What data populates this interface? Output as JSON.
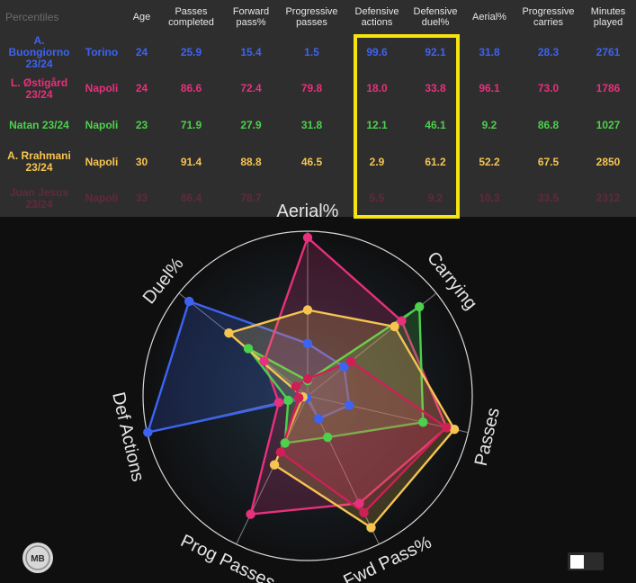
{
  "table": {
    "headers": [
      "Percentiles",
      "",
      "Age",
      "Passes completed",
      "Forward pass%",
      "Progressive passes",
      "Defensive actions",
      "Defensive duel%",
      "Aerial%",
      "Progressive carries",
      "Minutes played"
    ],
    "rows": [
      {
        "player": "A. Buongiorno 23/24",
        "team": "Torino",
        "color": "#3d63f2",
        "cells": [
          "24",
          "25.9",
          "15.4",
          "1.5",
          "99.6",
          "92.1",
          "31.8",
          "28.3",
          "2761"
        ]
      },
      {
        "player": "L. Østigård 23/24",
        "team": "Napoli",
        "color": "#e8307c",
        "cells": [
          "24",
          "86.6",
          "72.4",
          "79.8",
          "18.0",
          "33.8",
          "96.1",
          "73.0",
          "1786"
        ]
      },
      {
        "player": "Natan 23/24",
        "team": "Napoli",
        "color": "#4bd14b",
        "cells": [
          "23",
          "71.9",
          "27.9",
          "31.8",
          "12.1",
          "46.1",
          "9.2",
          "86.8",
          "1027"
        ]
      },
      {
        "player": "A. Rrahmani 23/24",
        "team": "Napoli",
        "color": "#f5c451",
        "cells": [
          "30",
          "91.4",
          "88.8",
          "46.5",
          "2.9",
          "61.2",
          "52.2",
          "67.5",
          "2850"
        ]
      },
      {
        "player": "Juan Jesus 23/24",
        "team": "Napoli",
        "color": "#cf1f57",
        "cells": [
          "33",
          "86.4",
          "78.7",
          "",
          "5.5",
          "9.2",
          "10.3",
          "33.5",
          "2312"
        ]
      }
    ],
    "highlight_color": "#f5e312"
  },
  "chart_data": {
    "type": "radar",
    "axes": [
      "Aerial%",
      "Carrying",
      "Passes",
      "Fwd Pass%",
      "Prog Passes",
      "Def Actions",
      "Duel%"
    ],
    "range": [
      0,
      100
    ],
    "series": [
      {
        "name": "A. Buongiorno 23/24",
        "color": "#3d63f2",
        "values": [
          31.8,
          28.3,
          25.9,
          15.4,
          1.5,
          99.6,
          92.1
        ]
      },
      {
        "name": "L. Østigård 23/24",
        "color": "#e8307c",
        "values": [
          96.1,
          73.0,
          86.6,
          72.4,
          79.8,
          18.0,
          33.8
        ]
      },
      {
        "name": "Natan 23/24",
        "color": "#4bd14b",
        "values": [
          9.2,
          86.8,
          71.9,
          27.9,
          31.8,
          12.1,
          46.1
        ]
      },
      {
        "name": "A. Rrahmani 23/24",
        "color": "#f5c451",
        "values": [
          52.2,
          67.5,
          91.4,
          88.8,
          46.5,
          2.9,
          61.2
        ]
      },
      {
        "name": "Juan Jesus 23/24",
        "color": "#cf1f57",
        "values": [
          10.3,
          33.5,
          86.4,
          78.7,
          38.0,
          5.5,
          9.2
        ]
      }
    ]
  },
  "logo": {
    "text": "MB"
  }
}
